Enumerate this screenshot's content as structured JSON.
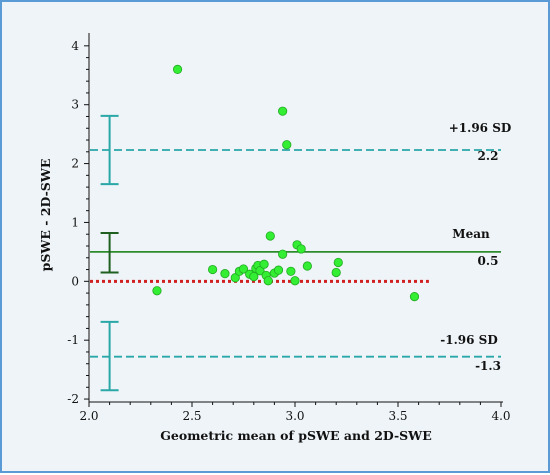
{
  "chart_data": {
    "type": "scatter",
    "xlabel": "Geometric mean of pSWE and 2D-SWE",
    "ylabel": "pSWE  - 2D-SWE",
    "xlim": [
      2.0,
      4.0
    ],
    "ylim": [
      -2.05,
      4.15
    ],
    "x_ticks": [
      "2.0",
      "2.5",
      "3.0",
      "3.5",
      "4.0"
    ],
    "y_ticks": [
      "-2",
      "-1",
      "0",
      "1",
      "2",
      "3",
      "4"
    ],
    "points": [
      [
        2.33,
        -0.16
      ],
      [
        2.43,
        3.6
      ],
      [
        2.6,
        0.2
      ],
      [
        2.66,
        0.13
      ],
      [
        2.71,
        0.06
      ],
      [
        2.73,
        0.17
      ],
      [
        2.75,
        0.21
      ],
      [
        2.78,
        0.12
      ],
      [
        2.8,
        0.08
      ],
      [
        2.81,
        0.22
      ],
      [
        2.82,
        0.27
      ],
      [
        2.83,
        0.18
      ],
      [
        2.85,
        0.29
      ],
      [
        2.86,
        0.1
      ],
      [
        2.87,
        0.01
      ],
      [
        2.88,
        0.77
      ],
      [
        2.9,
        0.14
      ],
      [
        2.92,
        0.19
      ],
      [
        2.94,
        2.89
      ],
      [
        2.94,
        0.46
      ],
      [
        2.96,
        2.32
      ],
      [
        2.98,
        0.17
      ],
      [
        3.0,
        0.01
      ],
      [
        3.01,
        0.62
      ],
      [
        3.03,
        0.55
      ],
      [
        3.06,
        0.26
      ],
      [
        3.2,
        0.15
      ],
      [
        3.21,
        0.32
      ],
      [
        3.58,
        -0.26
      ]
    ],
    "reference_lines": {
      "zero": {
        "y": 0
      },
      "mean": {
        "y": 0.5,
        "label": "Mean",
        "value": "0.5"
      },
      "upper_loa": {
        "y": 2.23,
        "label": "+1.96 SD",
        "value": "2.2"
      },
      "lower_loa": {
        "y": -1.28,
        "label": "-1.96 SD",
        "value": "-1.3"
      }
    },
    "confidence_intervals": {
      "x": 2.1,
      "upper_loa": [
        1.65,
        2.81
      ],
      "mean": [
        0.15,
        0.82
      ],
      "lower_loa": [
        -1.85,
        -0.69
      ]
    },
    "colors": {
      "points": "#33ee33",
      "point_stroke": "#22aa22",
      "mean_line": "#2e8b2e",
      "mean_ci": "#1f5f1f",
      "loa_line": "#2aa7a7",
      "loa_ci": "#2aa7a7",
      "zero_line": "#d02020"
    },
    "grid": false
  }
}
